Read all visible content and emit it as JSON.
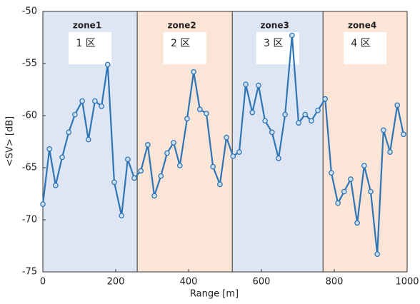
{
  "chart_data": {
    "type": "line",
    "xlabel": "Range [m]",
    "ylabel": "<SV> [dB]",
    "xlim": [
      0,
      1000
    ],
    "xticks": [
      0,
      200,
      400,
      600,
      800,
      1000
    ],
    "ylim": [
      -75,
      -50
    ],
    "yticks": [
      -75,
      -70,
      -65,
      -60,
      -55,
      -50
    ],
    "zones": [
      {
        "label": "zone1",
        "sublabel": "1 区",
        "start": 0,
        "end": 259,
        "color": "#dfe6f3"
      },
      {
        "label": "zone2",
        "sublabel": "2 区",
        "start": 259,
        "end": 520,
        "color": "#fbe5d6"
      },
      {
        "label": "zone3",
        "sublabel": "3 区",
        "start": 520,
        "end": 769,
        "color": "#dfe6f3"
      },
      {
        "label": "zone4",
        "sublabel": "4 区",
        "start": 769,
        "end": 1000,
        "color": "#fbe5d6"
      }
    ],
    "x": [
      0,
      18,
      35,
      53,
      71,
      88,
      108,
      125,
      143,
      161,
      178,
      196,
      216,
      233,
      251,
      269,
      288,
      306,
      324,
      341,
      359,
      376,
      396,
      414,
      431,
      449,
      467,
      486,
      504,
      522,
      539,
      557,
      575,
      592,
      610,
      629,
      647,
      665,
      684,
      702,
      720,
      737,
      755,
      775,
      792,
      810,
      827,
      845,
      863,
      882,
      900,
      918,
      935,
      953,
      973,
      990
    ],
    "series": [
      {
        "color": "#2e75b6",
        "values": [
          -68.5,
          -63.2,
          -66.7,
          -64.0,
          -61.6,
          -59.9,
          -58.6,
          -62.3,
          -58.6,
          -59.1,
          -55.1,
          -66.4,
          -69.6,
          -64.2,
          -66.0,
          -65.3,
          -62.8,
          -67.7,
          -65.8,
          -63.6,
          -62.6,
          -64.8,
          -60.3,
          -55.8,
          -59.4,
          -59.8,
          -64.9,
          -66.6,
          -62.1,
          -63.9,
          -63.5,
          -57.0,
          -59.7,
          -57.1,
          -60.5,
          -61.6,
          -64.1,
          -59.9,
          -52.3,
          -60.7,
          -59.9,
          -60.5,
          -59.5,
          -58.4,
          -65.5,
          -68.4,
          -67.3,
          -66.1,
          -70.3,
          -64.8,
          -67.3,
          -73.3,
          -61.4,
          -63.5,
          -59.0,
          -61.8
        ]
      }
    ]
  }
}
